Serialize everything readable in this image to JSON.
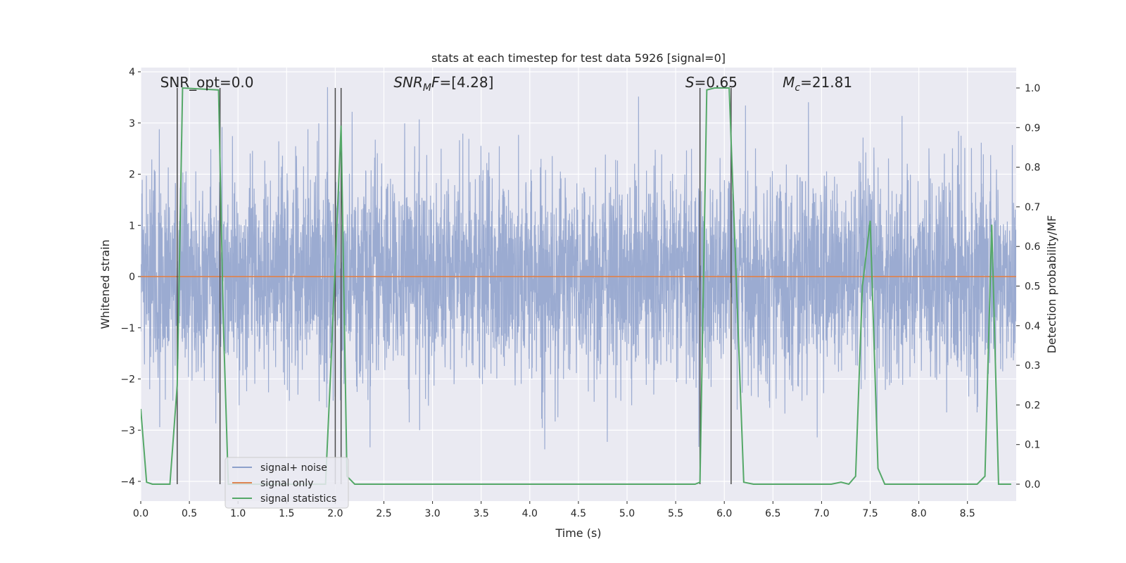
{
  "chart_data": {
    "type": "line",
    "title": "stats at each timestep for test data 5926 [signal=0]",
    "xlabel": "Time (s)",
    "ylabel": "Whitened strain",
    "y2label": "Detection probability/MF",
    "xlim": [
      0.0,
      9.0
    ],
    "ylim": [
      -4.35,
      4.05
    ],
    "y2lim": [
      -0.05,
      1.04
    ],
    "x_ticks": [
      0.0,
      0.5,
      1.0,
      1.5,
      2.0,
      2.5,
      3.0,
      3.5,
      4.0,
      4.5,
      5.0,
      5.5,
      6.0,
      6.5,
      7.0,
      7.5,
      8.0,
      8.5
    ],
    "x_tick_labels": [
      "0.0",
      "0.5",
      "1.0",
      "1.5",
      "2.0",
      "2.5",
      "3.0",
      "3.5",
      "4.0",
      "4.5",
      "5.0",
      "5.5",
      "6.0",
      "6.5",
      "7.0",
      "7.5",
      "8.0",
      "8.5"
    ],
    "y_ticks": [
      -4,
      -3,
      -2,
      -1,
      0,
      1,
      2,
      3,
      4
    ],
    "y_tick_labels": [
      "−4",
      "−3",
      "−2",
      "−1",
      "0",
      "1",
      "2",
      "3",
      "4"
    ],
    "y2_ticks": [
      0.0,
      0.1,
      0.2,
      0.3,
      0.4,
      0.5,
      0.6,
      0.7,
      0.8,
      0.9,
      1.0
    ],
    "y2_tick_labels": [
      "0.0",
      "0.1",
      "0.2",
      "0.3",
      "0.4",
      "0.5",
      "0.6",
      "0.7",
      "0.8",
      "0.9",
      "1.0"
    ],
    "grid": true,
    "legend_position": "lower-left",
    "annotations": [
      {
        "text": "SNR_opt=0.0",
        "x": 0.2
      },
      {
        "text": "SNR_MF=[4.28]",
        "x": 2.6
      },
      {
        "text": "S=0.65",
        "x": 5.6
      },
      {
        "text": "M_c=21.81",
        "x": 6.6
      }
    ],
    "vertical_lines": [
      0.375,
      0.815,
      2.0,
      2.06,
      5.75,
      6.07
    ],
    "series": [
      {
        "name": "signal+ noise",
        "color": "#8da0cb",
        "axis": "left",
        "style": "dense-noise",
        "duration": 9.0,
        "sample_rate": 4096,
        "sigma": 1.0,
        "clip": [
          -4.0,
          3.7
        ]
      },
      {
        "name": "signal only",
        "color": "#dd8452",
        "axis": "left",
        "x": [
          0.0,
          9.0
        ],
        "y": [
          0.0,
          0.0
        ]
      },
      {
        "name": "signal statistics",
        "color": "#55a868",
        "axis": "right",
        "x": [
          0.0,
          0.06,
          0.12,
          0.3,
          0.375,
          0.43,
          0.8,
          0.85,
          0.9,
          1.9,
          1.95,
          2.06,
          2.12,
          2.2,
          5.7,
          5.75,
          5.82,
          5.9,
          6.05,
          6.2,
          6.3,
          7.1,
          7.2,
          7.28,
          7.35,
          7.42,
          7.5,
          7.58,
          7.65,
          8.6,
          8.68,
          8.75,
          8.82,
          8.95
        ],
        "y": [
          0.19,
          0.005,
          0.0,
          0.0,
          0.25,
          1.0,
          0.995,
          0.4,
          0.0,
          0.0,
          0.27,
          0.905,
          0.02,
          0.0,
          0.0,
          0.005,
          0.995,
          1.0,
          1.0,
          0.005,
          0.0,
          0.0,
          0.005,
          0.0,
          0.02,
          0.5,
          0.665,
          0.04,
          0.0,
          0.0,
          0.02,
          0.655,
          0.0,
          0.0
        ]
      }
    ]
  }
}
